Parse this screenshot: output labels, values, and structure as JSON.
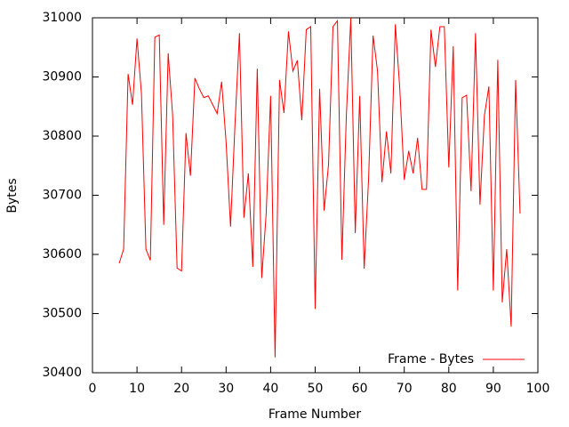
{
  "chart_data": {
    "type": "line",
    "x_label": "Frame Number",
    "y_label": "Bytes",
    "x": [
      6,
      7,
      8,
      9,
      10,
      11,
      12,
      13,
      14,
      15,
      16,
      17,
      18,
      19,
      20,
      21,
      22,
      23,
      24,
      25,
      26,
      27,
      28,
      29,
      30,
      31,
      32,
      33,
      34,
      35,
      36,
      37,
      38,
      39,
      40,
      41,
      42,
      43,
      44,
      45,
      46,
      47,
      48,
      49,
      50,
      51,
      52,
      53,
      54,
      55,
      56,
      57,
      58,
      59,
      60,
      61,
      62,
      63,
      64,
      65,
      66,
      67,
      68,
      69,
      70,
      71,
      72,
      73,
      74,
      75,
      76,
      77,
      78,
      79,
      80,
      81,
      82,
      83,
      84,
      85,
      86,
      87,
      88,
      89,
      90,
      91,
      92,
      93,
      94,
      95,
      96
    ],
    "series": [
      {
        "name": "Frame - Bytes",
        "color": "#ff0000",
        "values": [
          30585,
          30609,
          30905,
          30853,
          30965,
          30872,
          30609,
          30590,
          30967,
          30971,
          30650,
          30940,
          30835,
          30577,
          30572,
          30805,
          30733,
          30898,
          30880,
          30865,
          30868,
          30853,
          30838,
          30892,
          30790,
          30647,
          30820,
          30974,
          30662,
          30737,
          30579,
          30914,
          30560,
          30669,
          30868,
          30426,
          30895,
          30839,
          30977,
          30910,
          30928,
          30827,
          30980,
          30985,
          30508,
          30880,
          30674,
          30752,
          30985,
          30995,
          30591,
          30835,
          31000,
          30636,
          30868,
          30576,
          30729,
          30970,
          30910,
          30722,
          30808,
          30737,
          30989,
          30880,
          30726,
          30775,
          30737,
          30797,
          30710,
          30710,
          30980,
          30917,
          30985,
          30985,
          30747,
          30952,
          30539,
          30865,
          30869,
          30707,
          30974,
          30684,
          30835,
          30884,
          30539,
          30929,
          30519,
          30609,
          30478,
          30895,
          30669
        ]
      }
    ],
    "xlim": [
      0,
      100
    ],
    "xticks": [
      0,
      10,
      20,
      30,
      40,
      50,
      60,
      70,
      80,
      90,
      100
    ],
    "ylim": [
      30400,
      31000
    ],
    "yticks": [
      30400,
      30500,
      30600,
      30700,
      30800,
      30900,
      31000
    ],
    "grid": false,
    "legend_position": "bottom-right"
  }
}
